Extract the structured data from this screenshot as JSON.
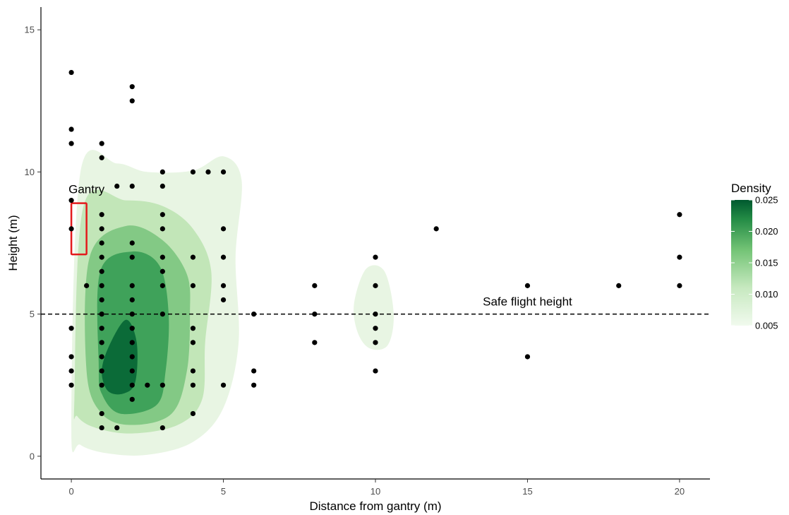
{
  "chart_data": {
    "type": "scatter",
    "xlabel": "Distance from gantry (m)",
    "ylabel": "Height (m)",
    "xlim": [
      -1,
      21
    ],
    "ylim": [
      -0.8,
      15.8
    ],
    "x_ticks": [
      0,
      5,
      10,
      15,
      20
    ],
    "y_ticks": [
      0,
      5,
      10,
      15
    ],
    "x_tick_labels": [
      "0",
      "5",
      "10",
      "15",
      "20"
    ],
    "y_tick_labels": [
      "0",
      "5",
      "10",
      "15"
    ],
    "grid": false,
    "points": [
      [
        0,
        13.5
      ],
      [
        0,
        11.5
      ],
      [
        0,
        11
      ],
      [
        0,
        9
      ],
      [
        0,
        8
      ],
      [
        0,
        4.5
      ],
      [
        0,
        3.5
      ],
      [
        0,
        3
      ],
      [
        0,
        2.5
      ],
      [
        0.5,
        6
      ],
      [
        1,
        11
      ],
      [
        1,
        10.5
      ],
      [
        1,
        8.5
      ],
      [
        1,
        8
      ],
      [
        1,
        7.5
      ],
      [
        1,
        7
      ],
      [
        1,
        6.5
      ],
      [
        1,
        6
      ],
      [
        1,
        5.5
      ],
      [
        1,
        5
      ],
      [
        1,
        4.5
      ],
      [
        1,
        4
      ],
      [
        1,
        3.5
      ],
      [
        1,
        3
      ],
      [
        1,
        2.5
      ],
      [
        1,
        1.5
      ],
      [
        1,
        1
      ],
      [
        1.5,
        9.5
      ],
      [
        1.5,
        1
      ],
      [
        2,
        13
      ],
      [
        2,
        12.5
      ],
      [
        2,
        9.5
      ],
      [
        2,
        7.5
      ],
      [
        2,
        7
      ],
      [
        2,
        6
      ],
      [
        2,
        5.5
      ],
      [
        2,
        5
      ],
      [
        2,
        4.5
      ],
      [
        2,
        4
      ],
      [
        2,
        3.5
      ],
      [
        2,
        3
      ],
      [
        2,
        2.5
      ],
      [
        2,
        2
      ],
      [
        2.5,
        2.5
      ],
      [
        3,
        10
      ],
      [
        3,
        9.5
      ],
      [
        3,
        8.5
      ],
      [
        3,
        8
      ],
      [
        3,
        7
      ],
      [
        3,
        6.5
      ],
      [
        3,
        6
      ],
      [
        3,
        5
      ],
      [
        3,
        2.5
      ],
      [
        3,
        1
      ],
      [
        4,
        10
      ],
      [
        4,
        7
      ],
      [
        4,
        6
      ],
      [
        4,
        4.5
      ],
      [
        4,
        4
      ],
      [
        4,
        3
      ],
      [
        4,
        2.5
      ],
      [
        4,
        1.5
      ],
      [
        4.5,
        10
      ],
      [
        5,
        10
      ],
      [
        5,
        8
      ],
      [
        5,
        7
      ],
      [
        5,
        6
      ],
      [
        5,
        5.5
      ],
      [
        5,
        2.5
      ],
      [
        6,
        5
      ],
      [
        6,
        3
      ],
      [
        6,
        2.5
      ],
      [
        8,
        6
      ],
      [
        8,
        5
      ],
      [
        8,
        4
      ],
      [
        10,
        7
      ],
      [
        10,
        6
      ],
      [
        10,
        5
      ],
      [
        10,
        4.5
      ],
      [
        10,
        4
      ],
      [
        10,
        3
      ],
      [
        12,
        8
      ],
      [
        15,
        6
      ],
      [
        15,
        3.5
      ],
      [
        18,
        6
      ],
      [
        20,
        8.5
      ],
      [
        20,
        7
      ],
      [
        20,
        6
      ]
    ],
    "reference_line": {
      "y": 5,
      "style": "dashed",
      "label": "Safe flight height"
    },
    "gantry_box": {
      "x": [
        0,
        0.5
      ],
      "y": [
        7.1,
        8.9
      ],
      "label": "Gantry",
      "color": "#e31a1c"
    },
    "density": {
      "legend_title": "Density",
      "legend_labels": [
        "0.025",
        "0.020",
        "0.015",
        "0.010",
        "0.005"
      ],
      "legend_values": [
        0.025,
        0.02,
        0.015,
        0.01,
        0.005
      ],
      "color_low": "#edf8e9",
      "color_high": "#005a32",
      "level_colors": [
        "#e8f5e3",
        "#c2e6b8",
        "#83c985",
        "#3fa25a",
        "#0b6b38"
      ]
    },
    "point_color": "#000000"
  }
}
